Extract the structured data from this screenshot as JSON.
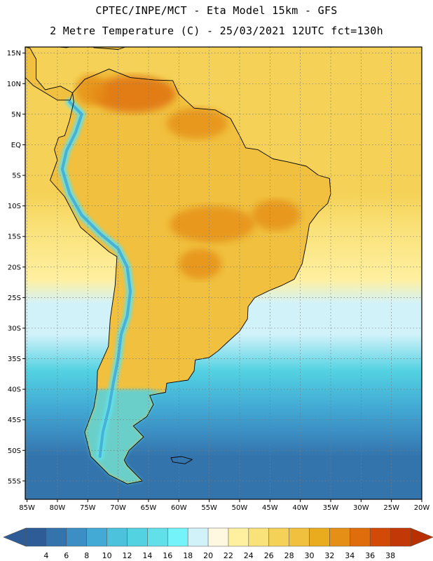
{
  "title_line1": "CPTEC/INPE/MCT -  Eta Model 15km - GFS",
  "title_line2": "2 Metre Temperature (C) - 25/03/2021 12UTC fct=130h",
  "lat_labels": [
    "15N",
    "10N",
    "5N",
    "EQ",
    "5S",
    "10S",
    "15S",
    "20S",
    "25S",
    "30S",
    "35S",
    "40S",
    "45S",
    "50S",
    "55S"
  ],
  "lat_values": [
    15,
    10,
    5,
    0,
    -5,
    -10,
    -15,
    -20,
    -25,
    -30,
    -35,
    -40,
    -45,
    -50,
    -55
  ],
  "lon_labels": [
    "85W",
    "80W",
    "75W",
    "70W",
    "65W",
    "60W",
    "55W",
    "50W",
    "45W",
    "40W",
    "35W",
    "30W",
    "25W",
    "20W"
  ],
  "lon_values": [
    -85,
    -80,
    -75,
    -70,
    -65,
    -60,
    -55,
    -50,
    -45,
    -40,
    -35,
    -30,
    -25,
    -20
  ],
  "map_extent": {
    "lon_min": -85.3,
    "lon_max": -20,
    "lat_min": -58,
    "lat_max": 16
  },
  "colorbar": {
    "labels": [
      "4",
      "6",
      "8",
      "10",
      "12",
      "14",
      "16",
      "18",
      "20",
      "22",
      "24",
      "26",
      "28",
      "30",
      "32",
      "34",
      "36",
      "38"
    ],
    "colors": [
      "#2d5c96",
      "#3474ad",
      "#3b8fc4",
      "#42aad4",
      "#4dc2dc",
      "#53d2e2",
      "#62e0ea",
      "#74f4f8",
      "#d2f2fa",
      "#fff8e0",
      "#fff0a0",
      "#fae27a",
      "#f5d257",
      "#f0c03e",
      "#eaac1f",
      "#e58f16",
      "#df6d0c",
      "#d34a06",
      "#c23806"
    ],
    "left_arrow": "#2d5c96",
    "right_arrow": "#b83000"
  },
  "field_colors": {
    "ocean_hot": "#f5d257",
    "ocean_warm": "#fae27a",
    "ocean_mild": "#fff0a0",
    "ocean_cool": "#d2f2fa",
    "ocean_cold": "#53d2e2",
    "ocean_colder": "#42aad4",
    "ocean_coldest": "#3b8fc4",
    "ocean_deep": "#3474ad",
    "land_warm": "#f0c03e",
    "land_hot": "#eaac1f",
    "land_hotter": "#e58f16",
    "land_hottest": "#df6d0c",
    "andes_cold": "#62e0ea",
    "andes_colder": "#42aad4"
  },
  "land_areas": [
    {
      "name": "south-america",
      "coords": [
        [
          -77.5,
          8.5
        ],
        [
          -75.5,
          10.7
        ],
        [
          -71.5,
          12.4
        ],
        [
          -68,
          11
        ],
        [
          -64,
          10.6
        ],
        [
          -61,
          10.5
        ],
        [
          -60,
          8.3
        ],
        [
          -57.5,
          6
        ],
        [
          -54,
          5.7
        ],
        [
          -51.5,
          4.3
        ],
        [
          -50,
          1.5
        ],
        [
          -49,
          -0.5
        ],
        [
          -47,
          -0.8
        ],
        [
          -44.5,
          -2.3
        ],
        [
          -42,
          -2.8
        ],
        [
          -39,
          -3.5
        ],
        [
          -37,
          -5
        ],
        [
          -35.2,
          -5.5
        ],
        [
          -35,
          -8
        ],
        [
          -35.5,
          -9.6
        ],
        [
          -37,
          -11
        ],
        [
          -38.5,
          -13
        ],
        [
          -39,
          -16
        ],
        [
          -39.7,
          -19.5
        ],
        [
          -41,
          -22
        ],
        [
          -43,
          -23
        ],
        [
          -45,
          -23.8
        ],
        [
          -47.5,
          -25
        ],
        [
          -48.6,
          -26.5
        ],
        [
          -48.7,
          -28.5
        ],
        [
          -50,
          -30.5
        ],
        [
          -52,
          -32.3
        ],
        [
          -53.5,
          -33.7
        ],
        [
          -55,
          -34.8
        ],
        [
          -57.3,
          -35.2
        ],
        [
          -57.5,
          -37
        ],
        [
          -58.5,
          -38.5
        ],
        [
          -62,
          -39
        ],
        [
          -62.2,
          -40.5
        ],
        [
          -64.8,
          -41
        ],
        [
          -64.2,
          -42.5
        ],
        [
          -65.3,
          -44.5
        ],
        [
          -67.5,
          -46
        ],
        [
          -65.8,
          -47.8
        ],
        [
          -68.2,
          -50
        ],
        [
          -69,
          -51.6
        ],
        [
          -68.5,
          -52.5
        ],
        [
          -66,
          -55
        ],
        [
          -68.5,
          -55.5
        ],
        [
          -71.5,
          -54
        ],
        [
          -74.5,
          -51
        ],
        [
          -75.5,
          -47
        ],
        [
          -74,
          -43
        ],
        [
          -73.5,
          -40
        ],
        [
          -73.4,
          -37
        ],
        [
          -71.6,
          -33
        ],
        [
          -71.3,
          -28.5
        ],
        [
          -70.5,
          -23
        ],
        [
          -70.2,
          -18.3
        ],
        [
          -71.5,
          -17.5
        ],
        [
          -76.2,
          -13.5
        ],
        [
          -78.8,
          -8.5
        ],
        [
          -81.2,
          -5.8
        ],
        [
          -80,
          -2.5
        ],
        [
          -80.5,
          -0.8
        ],
        [
          -79.8,
          1.2
        ],
        [
          -78.8,
          1.5
        ],
        [
          -78,
          4
        ],
        [
          -77.3,
          7
        ]
      ]
    },
    {
      "name": "central-america",
      "coords": [
        [
          -77.5,
          8.5
        ],
        [
          -79.5,
          9.6
        ],
        [
          -82,
          9
        ],
        [
          -83.5,
          10.8
        ],
        [
          -83.5,
          14
        ],
        [
          -84.5,
          15.8
        ],
        [
          -85.3,
          16
        ],
        [
          -85.3,
          13
        ],
        [
          -85.3,
          11
        ],
        [
          -84,
          9.7
        ],
        [
          -80,
          7.3
        ],
        [
          -77.9,
          7.3
        ]
      ]
    },
    {
      "name": "cuba",
      "coords": [
        [
          -85.3,
          16.4
        ],
        [
          -80,
          16.4
        ],
        [
          -77,
          16.2
        ],
        [
          -78.5,
          15.9
        ],
        [
          -81,
          16.1
        ],
        [
          -84.5,
          16.1
        ]
      ]
    },
    {
      "name": "hispaniola",
      "coords": [
        [
          -74,
          15.9
        ],
        [
          -70,
          15.6
        ],
        [
          -68.5,
          16.1
        ],
        [
          -71,
          16.4
        ],
        [
          -74.3,
          16.4
        ]
      ]
    },
    {
      "name": "falklands",
      "coords": [
        [
          -61.3,
          -51.2
        ],
        [
          -59.5,
          -51.0
        ],
        [
          -57.8,
          -51.5
        ],
        [
          -59,
          -52.2
        ],
        [
          -61,
          -51.9
        ]
      ]
    }
  ],
  "warm_spots": [
    {
      "name": "venezuela-llanos",
      "lon": -67.5,
      "lat": 8.3,
      "rx": 7,
      "ry": 3
    },
    {
      "name": "colombia-north",
      "lon": -74.5,
      "lat": 9,
      "rx": 2.5,
      "ry": 2.5
    },
    {
      "name": "mato-grosso-north",
      "lon": -54.5,
      "lat": -13,
      "rx": 7,
      "ry": 3
    },
    {
      "name": "pantanal",
      "lon": -56.5,
      "lat": -19.5,
      "rx": 3.5,
      "ry": 2.5
    },
    {
      "name": "piaui-bahia",
      "lon": -44,
      "lat": -11.5,
      "rx": 4,
      "ry": 2.5
    },
    {
      "name": "guianas",
      "lon": -57,
      "lat": 3.5,
      "rx": 5,
      "ry": 2.5
    }
  ],
  "andes": [
    [
      -78,
      7
    ],
    [
      -76,
      5
    ],
    [
      -77,
      2
    ],
    [
      -78.5,
      -1
    ],
    [
      -79.2,
      -4
    ],
    [
      -78,
      -8
    ],
    [
      -76,
      -11.5
    ],
    [
      -73,
      -14.5
    ],
    [
      -70,
      -17
    ],
    [
      -68.5,
      -20
    ],
    [
      -68,
      -24
    ],
    [
      -68.5,
      -28
    ],
    [
      -69.5,
      -31
    ],
    [
      -70,
      -35
    ],
    [
      -70.8,
      -39
    ],
    [
      -71.5,
      -43
    ],
    [
      -72.5,
      -47
    ],
    [
      -73,
      -51
    ]
  ]
}
